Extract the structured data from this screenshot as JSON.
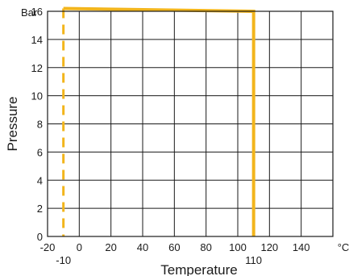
{
  "chart_data": {
    "type": "line",
    "xlabel": "Temperature",
    "ylabel": "Pressure",
    "y_unit_label": "Bar",
    "x_unit_label": "°C",
    "xlim": [
      -20,
      160
    ],
    "ylim": [
      0,
      16
    ],
    "grid": true,
    "x_ticks": [
      -20,
      0,
      20,
      40,
      60,
      80,
      100,
      120,
      140
    ],
    "x_tick_labels": [
      "-20",
      "0",
      "20",
      "40",
      "60",
      "80",
      "100",
      "120",
      "140"
    ],
    "y_ticks": [
      0,
      2,
      4,
      6,
      8,
      10,
      12,
      14,
      16
    ],
    "y_tick_labels": [
      "0",
      "2",
      "4",
      "6",
      "8",
      "10",
      "12",
      "14",
      "16"
    ],
    "annotations": [
      {
        "text": "-10",
        "x": -10
      },
      {
        "text": "110",
        "x": 110
      }
    ],
    "series": [
      {
        "style": "solid",
        "color": "#F2B51C",
        "x": [
          -10,
          110,
          110
        ],
        "y": [
          16.2,
          16.0,
          0
        ]
      },
      {
        "style": "dashed",
        "color": "#F2B51C",
        "x": [
          -10,
          -10
        ],
        "y": [
          16.2,
          0
        ]
      }
    ]
  }
}
